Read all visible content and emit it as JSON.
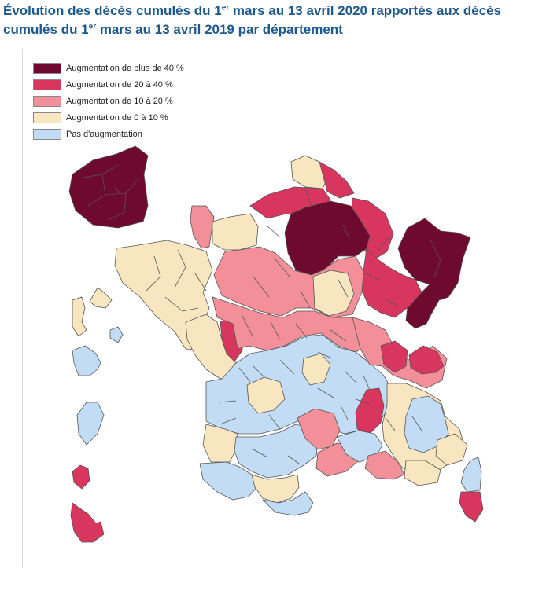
{
  "title": {
    "line1_a": "Évolution des décès cumulés du 1",
    "line1_sup": "er",
    "line1_b": " mars au 13 avril 2020 rapportés aux décès",
    "line2_a": "cumulés du 1",
    "line2_sup": "er",
    "line2_b": " mars au 13 avril 2019 par département"
  },
  "legend": [
    {
      "key": "a",
      "label": "Augmentation de plus de 40 %",
      "color": "#6e0a2e"
    },
    {
      "key": "b",
      "label": "Augmentation de 20 à 40 %",
      "color": "#d9365f"
    },
    {
      "key": "c",
      "label": "Augmentation de 10 à 20 %",
      "color": "#f28f98"
    },
    {
      "key": "d",
      "label": "Augmentation de 0 à 10 %",
      "color": "#f7e6c0"
    },
    {
      "key": "e",
      "label": "Pas d'augmentation",
      "color": "#c3dcf5"
    }
  ],
  "regions": {
    "ile_de_france_inset": "a",
    "guadeloupe": "d",
    "martinique": "e",
    "guyane": "e",
    "la_reunion": "e",
    "mayotte": "b",
    "haute_corse": "e",
    "corse_du_sud": "b"
  }
}
